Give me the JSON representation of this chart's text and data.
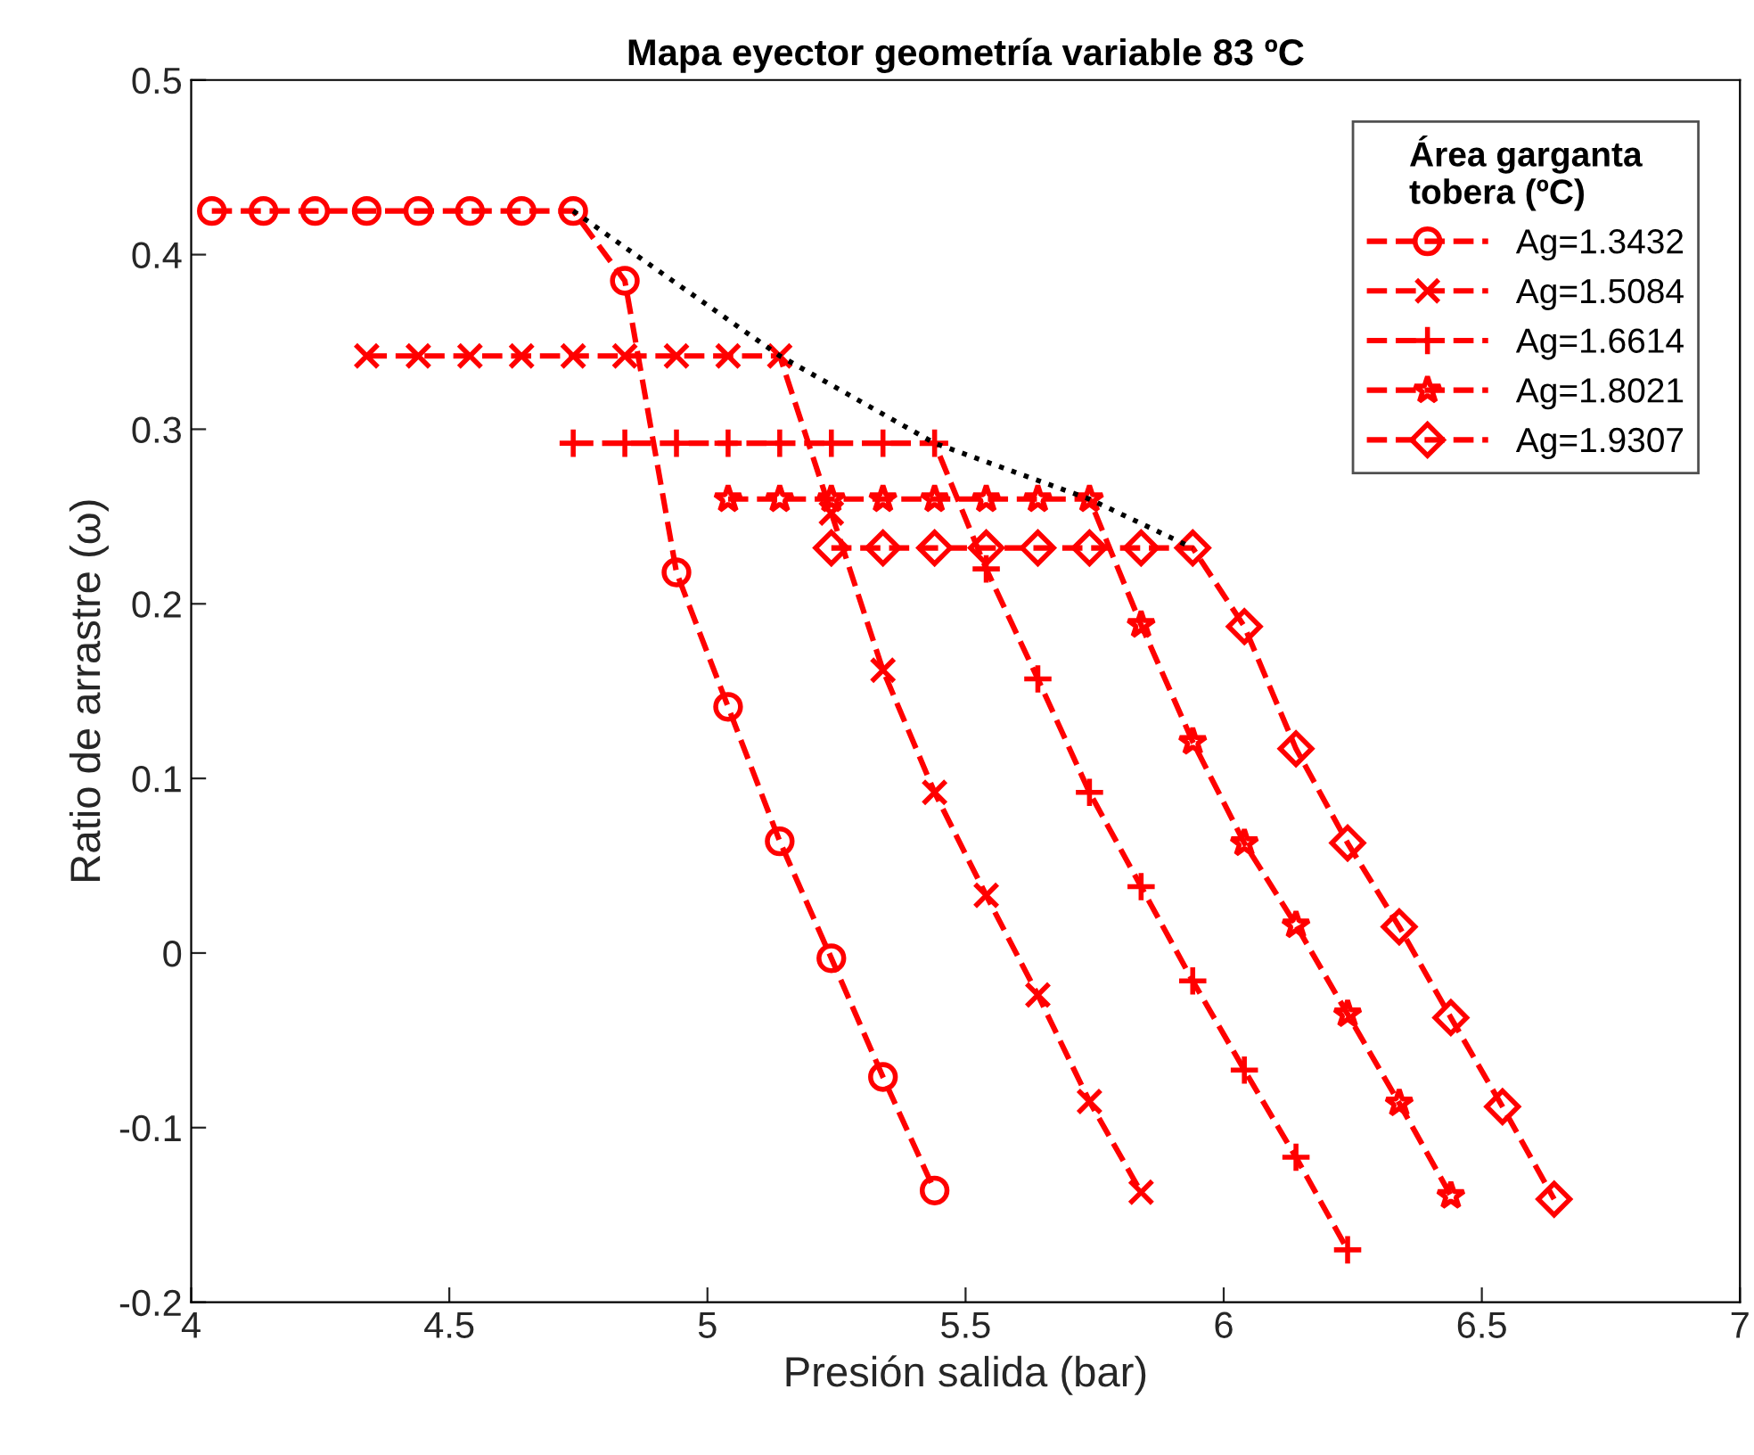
{
  "chart_data": {
    "type": "line",
    "title": "Mapa eyector geometría variable 83 ºC",
    "xlabel": "Presión salida (bar)",
    "ylabel": "Ratio de arrastre (ω)",
    "legend_title": "Área garganta\ntobera (ºC)",
    "legend": "top right",
    "grid": false,
    "line_style": "dashed",
    "xlim": [
      4,
      7
    ],
    "xticks": [
      4,
      4.5,
      5,
      5.5,
      6,
      6.5,
      7
    ],
    "ylim": [
      -0.2,
      0.5
    ],
    "yticks": [
      -0.2,
      -0.1,
      0,
      0.1,
      0.2,
      0.3,
      0.4,
      0.5
    ],
    "series": [
      {
        "name": "Ag=1.3432",
        "color": "#ff0000",
        "marker": "circle",
        "x": [
          4.04,
          4.14,
          4.24,
          4.34,
          4.44,
          4.54,
          4.64,
          4.74,
          4.84,
          4.94,
          5.04,
          5.14,
          5.24,
          5.34,
          5.44
        ],
        "values": [
          0.425,
          0.425,
          0.425,
          0.425,
          0.425,
          0.425,
          0.425,
          0.425,
          0.385,
          0.218,
          0.141,
          0.064,
          -0.003,
          -0.071,
          -0.136
        ]
      },
      {
        "name": "Ag=1.5084",
        "color": "#ff0000",
        "marker": "x",
        "x": [
          4.34,
          4.44,
          4.54,
          4.64,
          4.74,
          4.84,
          4.94,
          5.04,
          5.14,
          5.24,
          5.34,
          5.44,
          5.54,
          5.64,
          5.74,
          5.84
        ],
        "values": [
          0.342,
          0.342,
          0.342,
          0.342,
          0.342,
          0.342,
          0.342,
          0.342,
          0.342,
          0.252,
          0.162,
          0.092,
          0.033,
          -0.024,
          -0.085,
          -0.137
        ]
      },
      {
        "name": "Ag=1.6614",
        "color": "#ff0000",
        "marker": "plus",
        "x": [
          4.74,
          4.84,
          4.94,
          5.04,
          5.14,
          5.24,
          5.34,
          5.44,
          5.54,
          5.64,
          5.74,
          5.84,
          5.94,
          6.04,
          6.14,
          6.24
        ],
        "values": [
          0.292,
          0.292,
          0.292,
          0.292,
          0.292,
          0.292,
          0.292,
          0.292,
          0.22,
          0.157,
          0.092,
          0.038,
          -0.016,
          -0.067,
          -0.117,
          -0.17
        ]
      },
      {
        "name": "Ag=1.8021",
        "color": "#ff0000",
        "marker": "star",
        "x": [
          5.04,
          5.14,
          5.24,
          5.34,
          5.44,
          5.54,
          5.64,
          5.74,
          5.84,
          5.94,
          6.04,
          6.14,
          6.24,
          6.34,
          6.44
        ],
        "values": [
          0.26,
          0.26,
          0.26,
          0.26,
          0.26,
          0.26,
          0.26,
          0.26,
          0.188,
          0.121,
          0.063,
          0.016,
          -0.035,
          -0.086,
          -0.139
        ]
      },
      {
        "name": "Ag=1.9307",
        "color": "#ff0000",
        "marker": "diamond",
        "x": [
          5.24,
          5.34,
          5.44,
          5.54,
          5.64,
          5.74,
          5.84,
          5.94,
          6.04,
          6.14,
          6.24,
          6.34,
          6.44,
          6.54,
          6.64
        ],
        "values": [
          0.232,
          0.232,
          0.232,
          0.232,
          0.232,
          0.232,
          0.232,
          0.232,
          0.187,
          0.117,
          0.063,
          0.015,
          -0.037,
          -0.088,
          -0.141
        ]
      },
      {
        "color": "#000000",
        "marker": "none",
        "line_style": "dotted",
        "x": [
          4.74,
          5.14,
          5.44,
          5.74,
          5.94
        ],
        "values": [
          0.425,
          0.342,
          0.292,
          0.26,
          0.232
        ]
      }
    ]
  }
}
